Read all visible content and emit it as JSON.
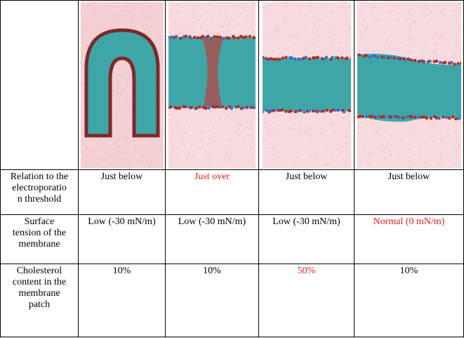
{
  "table": {
    "rows": [
      {
        "label": "Relation to the electroporation threshold",
        "label_lines": [
          "Relation to the",
          "electroporatio",
          "n threshold"
        ],
        "cells": [
          "Just below",
          "Just over",
          "Just below",
          "Just below"
        ],
        "highlight": [
          false,
          true,
          false,
          false
        ]
      },
      {
        "label": "Surface tension of the membrane",
        "label_lines": [
          "Surface",
          "tension of the",
          "membrane"
        ],
        "cells": [
          "Low (-30 mN/m)",
          "Low (-30 mN/m)",
          "Low (-30 mN/m)",
          "Normal (0 mN/m)"
        ],
        "highlight": [
          false,
          false,
          false,
          true
        ]
      },
      {
        "label": "Cholesterol content in the membrane patch",
        "label_lines": [
          "Cholesterol",
          "content in the",
          "membrane",
          "patch"
        ],
        "cells": [
          "10%",
          "10%",
          "50%",
          "10%"
        ],
        "highlight": [
          false,
          false,
          true,
          false
        ]
      }
    ]
  },
  "colors": {
    "highlight": "#e0201a",
    "water": "#e8a0a8",
    "lipid_tail": "#3fa6a8",
    "headgroup_red": "#b02828",
    "headgroup_blue": "#3a6fc0"
  },
  "images": [
    {
      "name": "membrane-simulation-image-1",
      "state": "bent"
    },
    {
      "name": "membrane-simulation-image-2",
      "state": "pore"
    },
    {
      "name": "membrane-simulation-image-3",
      "state": "flat"
    },
    {
      "name": "membrane-simulation-image-4",
      "state": "flat-wavy"
    }
  ]
}
